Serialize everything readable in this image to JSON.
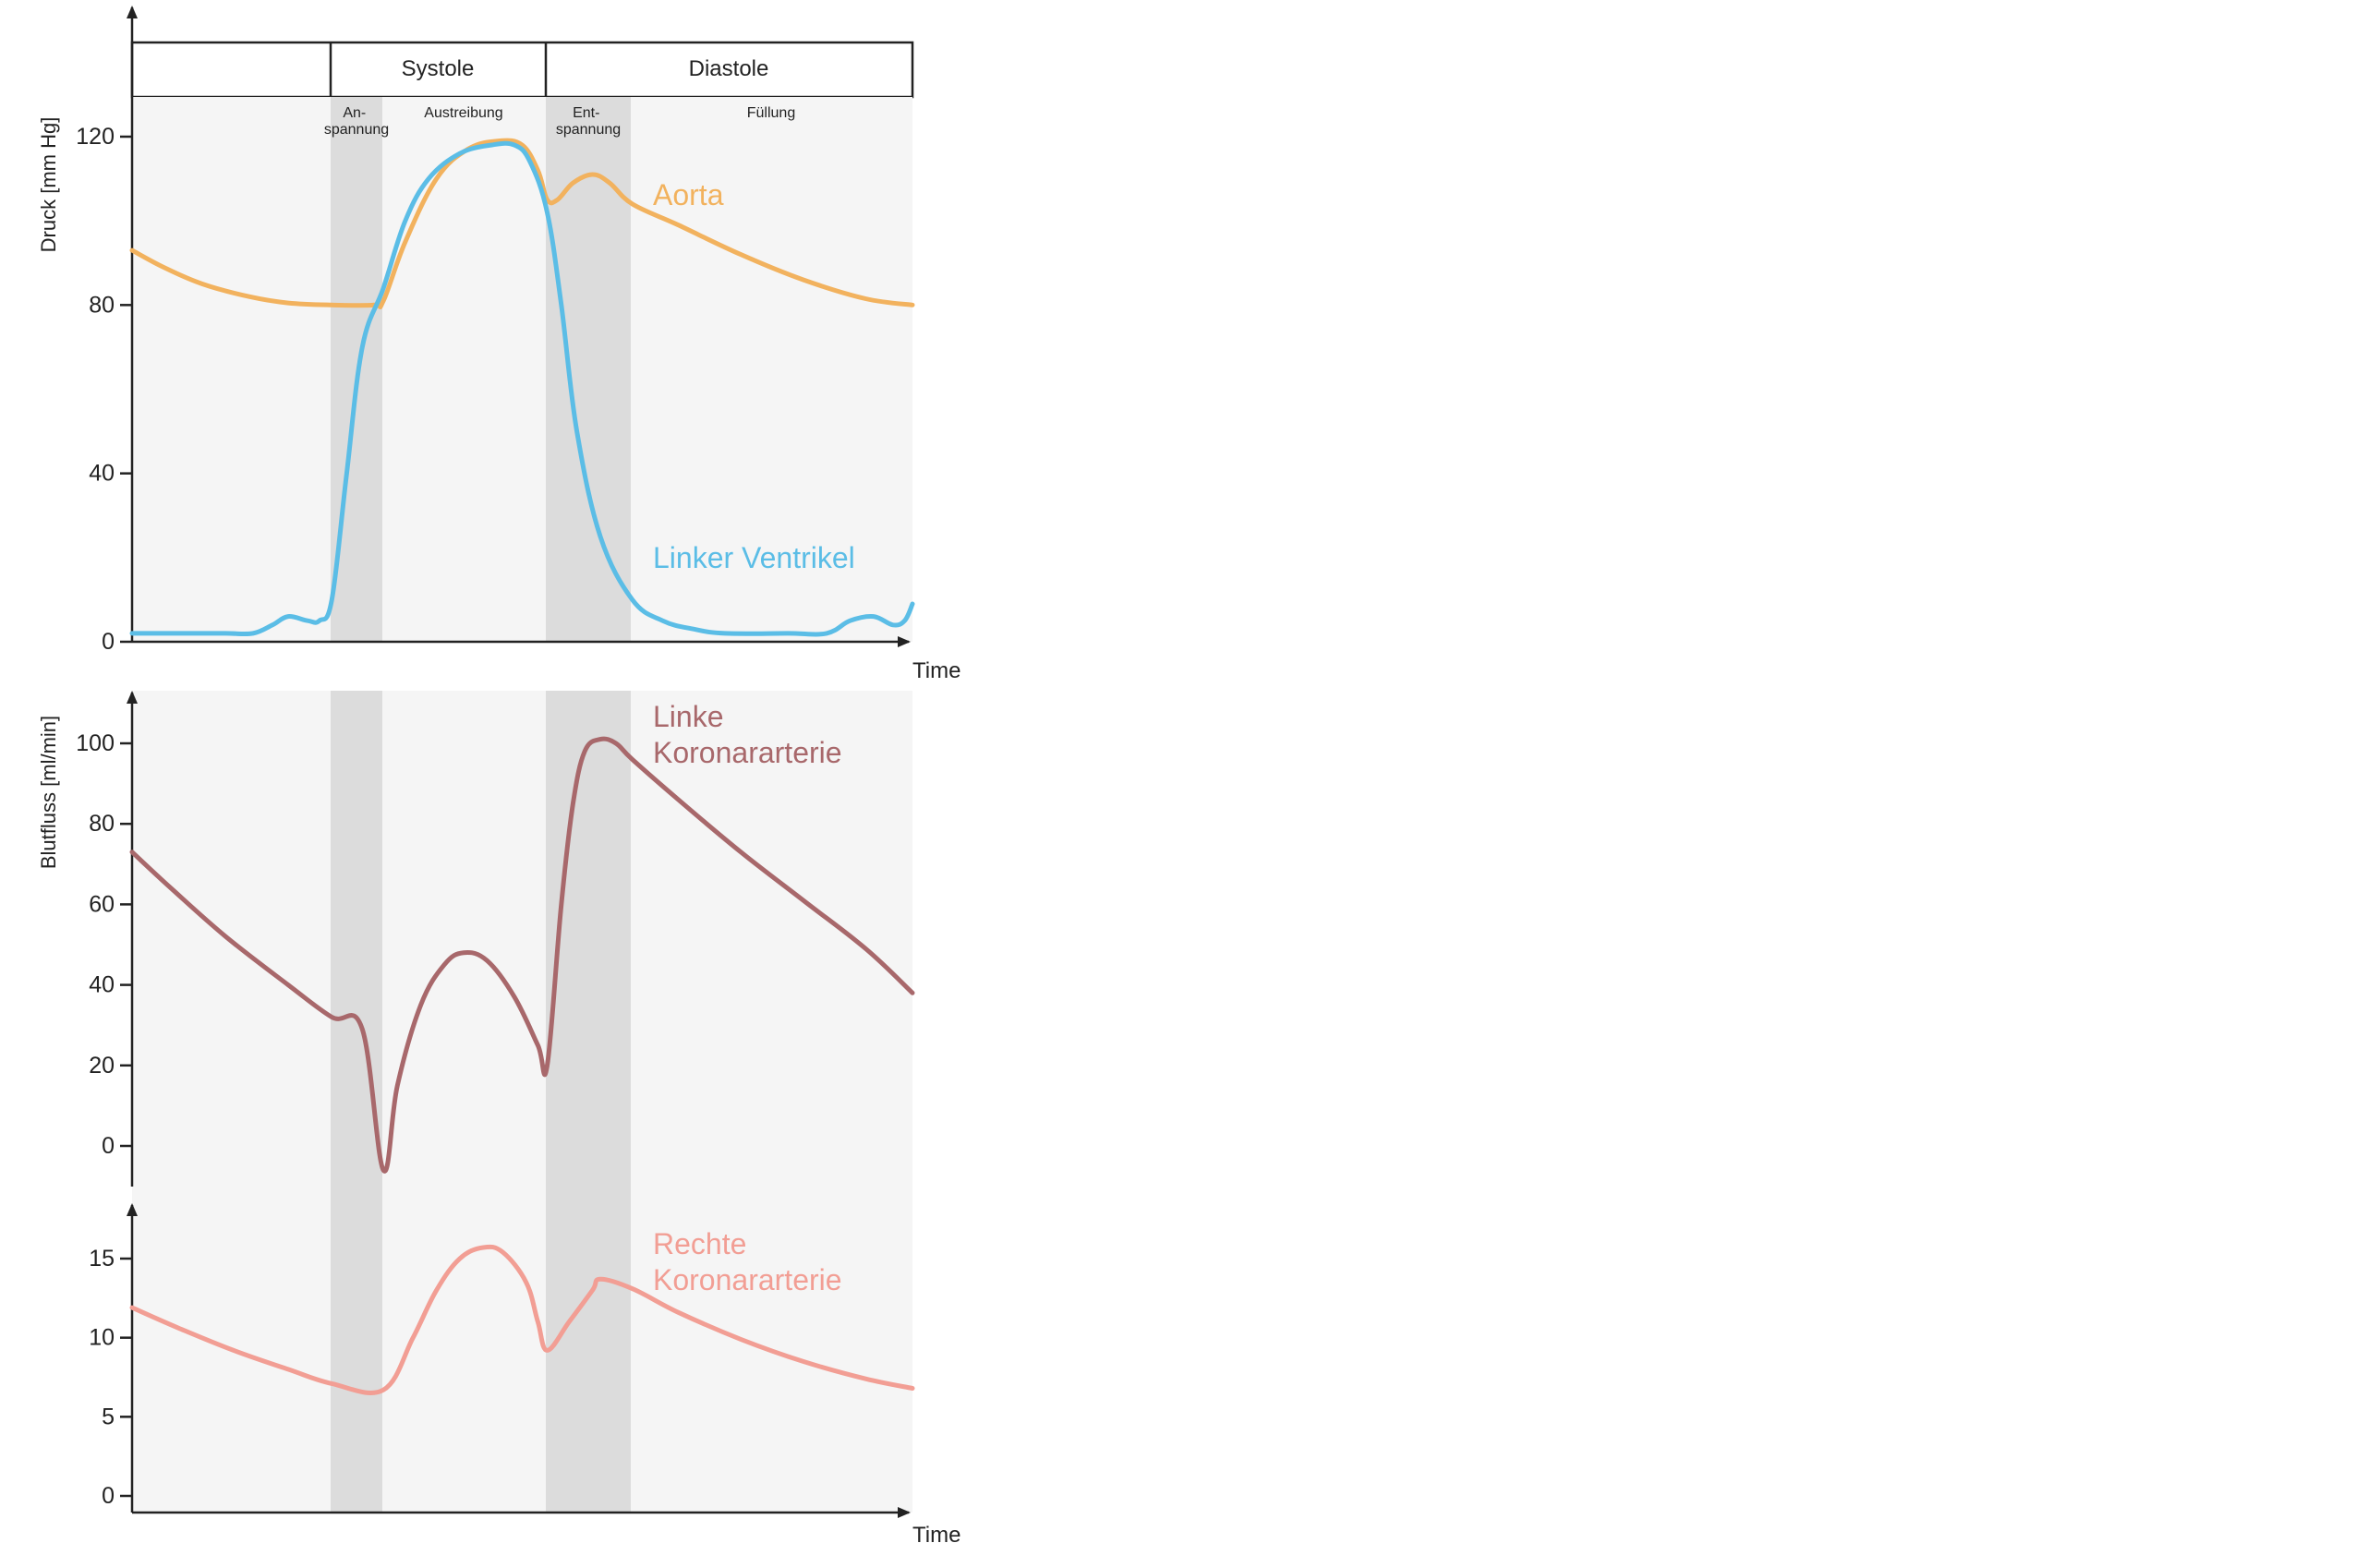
{
  "colors": {
    "aorta": "#f2b25e",
    "ventricle": "#5bbde6",
    "left_coronary": "#a8686b",
    "right_coronary": "#f29e94",
    "panel_bg": "#f5f5f5",
    "phase_shade": "#dcdcdc",
    "axis": "#222222"
  },
  "header": {
    "systole_label": "Systole",
    "diastole_label": "Diastole",
    "phases": [
      {
        "id": "anspannung",
        "label_lines": [
          "An-",
          "spannung"
        ]
      },
      {
        "id": "austreibung",
        "label_lines": [
          "Austreibung"
        ]
      },
      {
        "id": "entspannung",
        "label_lines": [
          "Ent-",
          "spannung"
        ]
      },
      {
        "id": "fuellung",
        "label_lines": [
          "Füllung"
        ]
      }
    ]
  },
  "chart_data": [
    {
      "type": "line",
      "id": "pressure",
      "ylabel": "Druck [mm Hg]",
      "xlabel": "Time",
      "ylim": [
        0,
        140
      ],
      "yticks": [
        0,
        40,
        80,
        120
      ],
      "xlim": [
        0,
        1
      ],
      "phase_boundaries": [
        0.256,
        0.322,
        0.532,
        0.641
      ],
      "series": [
        {
          "name": "Aorta",
          "color_key": "aorta",
          "points": [
            [
              0,
              93
            ],
            [
              0.04,
              89
            ],
            [
              0.09,
              85
            ],
            [
              0.15,
              82
            ],
            [
              0.2,
              80.5
            ],
            [
              0.256,
              80
            ],
            [
              0.31,
              80
            ],
            [
              0.322,
              81
            ],
            [
              0.35,
              95
            ],
            [
              0.39,
              110
            ],
            [
              0.43,
              117
            ],
            [
              0.47,
              119
            ],
            [
              0.5,
              118
            ],
            [
              0.52,
              112
            ],
            [
              0.532,
              105
            ],
            [
              0.545,
              105
            ],
            [
              0.565,
              109
            ],
            [
              0.59,
              111
            ],
            [
              0.612,
              109
            ],
            [
              0.641,
              104
            ],
            [
              0.7,
              99
            ],
            [
              0.78,
              92
            ],
            [
              0.86,
              86
            ],
            [
              0.94,
              81.5
            ],
            [
              1,
              80
            ]
          ]
        },
        {
          "name": "Linker Ventrikel",
          "color_key": "ventricle",
          "points": [
            [
              0,
              2
            ],
            [
              0.06,
              2
            ],
            [
              0.12,
              2
            ],
            [
              0.155,
              2
            ],
            [
              0.18,
              4
            ],
            [
              0.2,
              6
            ],
            [
              0.225,
              5
            ],
            [
              0.24,
              5
            ],
            [
              0.256,
              10
            ],
            [
              0.275,
              40
            ],
            [
              0.295,
              70
            ],
            [
              0.322,
              84
            ],
            [
              0.35,
              100
            ],
            [
              0.38,
              110
            ],
            [
              0.42,
              116
            ],
            [
              0.46,
              118
            ],
            [
              0.49,
              118
            ],
            [
              0.51,
              114
            ],
            [
              0.532,
              102
            ],
            [
              0.55,
              80
            ],
            [
              0.57,
              50
            ],
            [
              0.6,
              25
            ],
            [
              0.641,
              10
            ],
            [
              0.68,
              5
            ],
            [
              0.72,
              3
            ],
            [
              0.76,
              2
            ],
            [
              0.84,
              2
            ],
            [
              0.89,
              2
            ],
            [
              0.92,
              5
            ],
            [
              0.95,
              6
            ],
            [
              0.975,
              4
            ],
            [
              0.99,
              5
            ],
            [
              1,
              9
            ]
          ]
        }
      ]
    },
    {
      "type": "line",
      "id": "left-coronary",
      "ylabel": "Blutfluss [ml/min]",
      "ylim": [
        -10,
        110
      ],
      "yticks": [
        0,
        20,
        40,
        60,
        80,
        100
      ],
      "xlim": [
        0,
        1
      ],
      "phase_boundaries": [
        0.256,
        0.322,
        0.532,
        0.641
      ],
      "series": [
        {
          "name": "Linke Koronararterie",
          "label_lines": [
            "Linke",
            "Koronararterie"
          ],
          "color_key": "left_coronary",
          "points": [
            [
              0,
              73
            ],
            [
              0.05,
              64
            ],
            [
              0.12,
              52
            ],
            [
              0.2,
              40
            ],
            [
              0.256,
              32
            ],
            [
              0.295,
              29
            ],
            [
              0.322,
              -6
            ],
            [
              0.34,
              15
            ],
            [
              0.37,
              35
            ],
            [
              0.4,
              45
            ],
            [
              0.425,
              48
            ],
            [
              0.455,
              46
            ],
            [
              0.49,
              37
            ],
            [
              0.52,
              25
            ],
            [
              0.532,
              20
            ],
            [
              0.55,
              60
            ],
            [
              0.565,
              85
            ],
            [
              0.58,
              98
            ],
            [
              0.6,
              101
            ],
            [
              0.62,
              100
            ],
            [
              0.641,
              96
            ],
            [
              0.7,
              86
            ],
            [
              0.78,
              73
            ],
            [
              0.86,
              61
            ],
            [
              0.94,
              49
            ],
            [
              1,
              38
            ]
          ]
        }
      ]
    },
    {
      "type": "line",
      "id": "right-coronary",
      "xlabel": "Time",
      "ylim": [
        -0.8,
        18.5
      ],
      "yticks": [
        0,
        5,
        10,
        15
      ],
      "xlim": [
        0,
        1
      ],
      "phase_boundaries": [
        0.256,
        0.322,
        0.532,
        0.641
      ],
      "series": [
        {
          "name": "Rechte Koronararterie",
          "label_lines": [
            "Rechte",
            "Koronararterie"
          ],
          "color_key": "right_coronary",
          "points": [
            [
              0,
              11.9
            ],
            [
              0.06,
              10.6
            ],
            [
              0.13,
              9.2
            ],
            [
              0.2,
              8
            ],
            [
              0.256,
              7.1
            ],
            [
              0.322,
              6.7
            ],
            [
              0.36,
              10
            ],
            [
              0.39,
              13
            ],
            [
              0.42,
              15
            ],
            [
              0.45,
              15.7
            ],
            [
              0.475,
              15.4
            ],
            [
              0.505,
              13.5
            ],
            [
              0.52,
              11
            ],
            [
              0.532,
              9.2
            ],
            [
              0.56,
              11
            ],
            [
              0.59,
              13
            ],
            [
              0.6,
              13.7
            ],
            [
              0.641,
              13.1
            ],
            [
              0.7,
              11.6
            ],
            [
              0.78,
              9.9
            ],
            [
              0.86,
              8.5
            ],
            [
              0.94,
              7.4
            ],
            [
              1,
              6.8
            ]
          ]
        }
      ]
    }
  ]
}
